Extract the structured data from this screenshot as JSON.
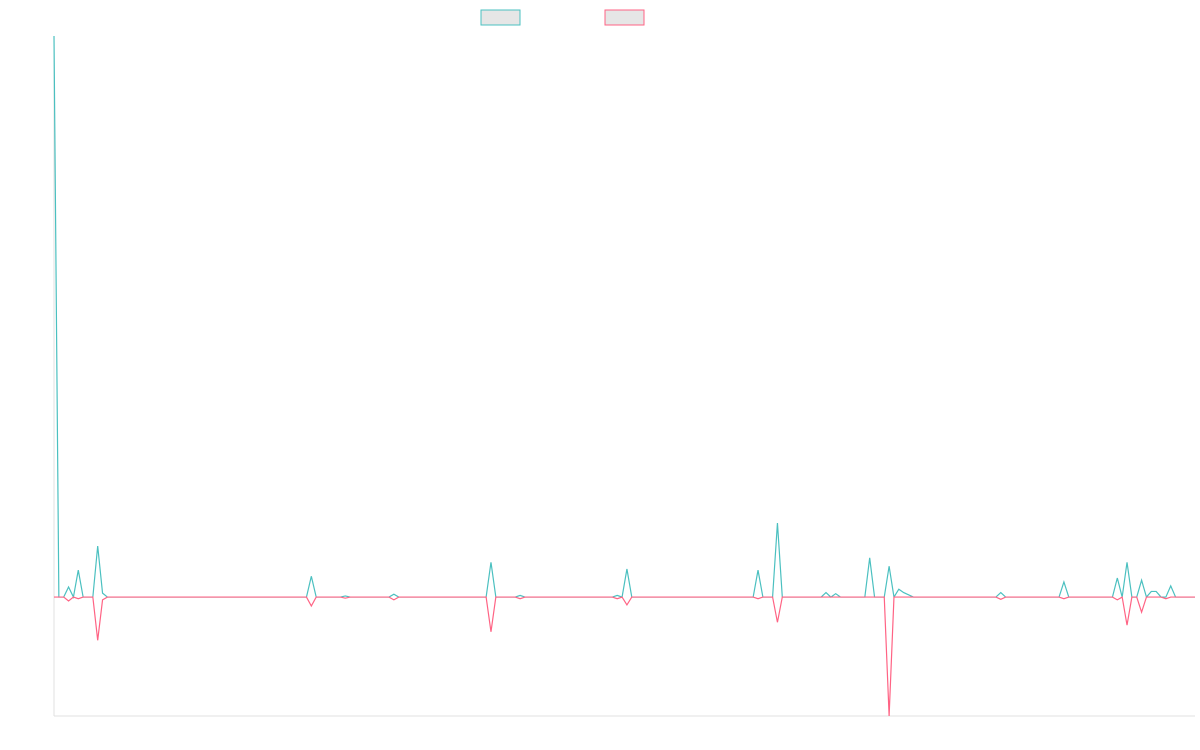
{
  "chart_data": {
    "type": "line",
    "x": [
      0,
      1,
      2,
      3,
      4,
      5,
      6,
      8,
      9,
      10,
      11,
      52,
      53,
      54,
      59,
      60,
      61,
      69,
      70,
      71,
      89,
      90,
      91,
      95,
      96,
      97,
      115,
      116,
      117,
      118,
      119,
      144,
      145,
      146,
      148,
      149,
      150,
      158,
      159,
      160,
      161,
      162,
      167,
      168,
      169,
      171,
      172,
      173,
      174,
      175,
      177,
      194,
      195,
      196,
      207,
      208,
      209,
      218,
      219,
      220,
      221,
      222,
      223,
      224,
      225,
      226,
      227,
      228,
      229,
      230,
      231,
      235
    ],
    "series": [
      {
        "color": "#4bc0c0",
        "values": [
          100,
          0,
          0,
          1.8,
          0,
          4.8,
          0,
          0,
          9.1,
          0.7,
          0,
          0,
          3.7,
          0,
          0,
          0.2,
          0,
          0,
          0.5,
          0,
          0,
          6.2,
          0,
          0,
          0.3,
          0,
          0,
          0.3,
          0,
          5.0,
          0,
          0,
          4.8,
          0,
          0,
          13.2,
          0,
          0,
          0.8,
          0,
          0.6,
          0,
          0,
          7.0,
          0,
          0,
          5.5,
          0,
          1.4,
          0.8,
          0,
          0,
          0.8,
          0,
          0,
          2.7,
          0,
          0,
          3.4,
          0,
          6.2,
          0,
          0,
          3.0,
          0,
          1.0,
          1.0,
          0,
          0,
          2.0,
          0,
          0
        ]
      },
      {
        "color": "#ff6384",
        "values": [
          0,
          0,
          0,
          -0.7,
          0,
          -0.3,
          0,
          0,
          -7.7,
          -0.5,
          0,
          0,
          -1.6,
          0,
          0,
          -0.2,
          0,
          0,
          -0.5,
          0,
          0,
          -6.2,
          0,
          0,
          -0.3,
          0,
          0,
          -0.3,
          0,
          -1.4,
          0,
          0,
          -0.3,
          0,
          0,
          -4.5,
          0,
          0,
          0,
          0,
          0,
          0,
          0,
          0,
          0,
          0,
          -21.2,
          0,
          0,
          0,
          0,
          0,
          -0.4,
          0,
          0,
          -0.3,
          0,
          0,
          -0.5,
          0,
          -5.0,
          0,
          0,
          -2.7,
          0,
          0,
          0,
          0,
          -0.3,
          0,
          0,
          0
        ]
      }
    ],
    "xlim": [
      0,
      235
    ],
    "ylim": [
      -21.2,
      100
    ]
  }
}
